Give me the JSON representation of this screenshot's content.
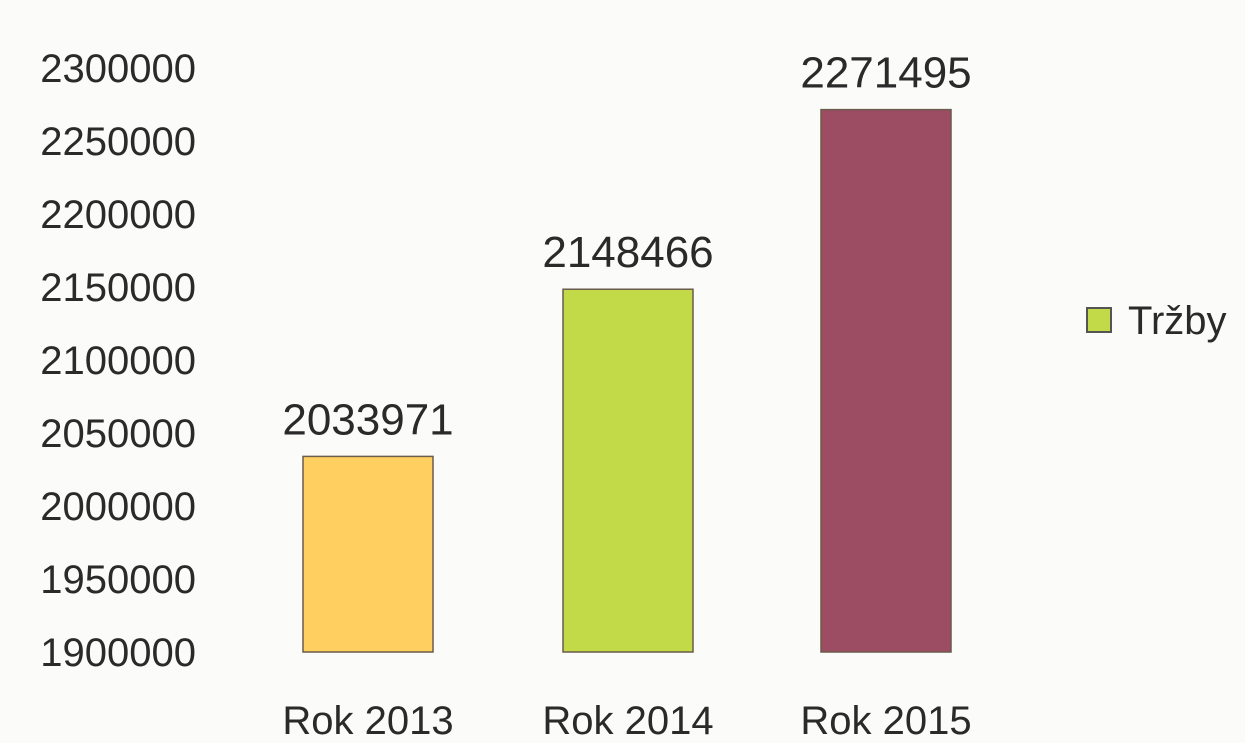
{
  "chart_data": {
    "type": "bar",
    "categories": [
      "Rok 2013",
      "Rok 2014",
      "Rok 2015"
    ],
    "series": [
      {
        "name": "Tržby",
        "values": [
          2033971,
          2148466,
          2271495
        ]
      }
    ],
    "data_labels": [
      "2033971",
      "2148466",
      "2271495"
    ],
    "y_ticks": [
      "1900000",
      "1950000",
      "2000000",
      "2050000",
      "2100000",
      "2150000",
      "2200000",
      "2250000",
      "2300000"
    ],
    "ylim": [
      1900000,
      2300000
    ],
    "bar_colors": [
      "#ffd060",
      "#c2da48",
      "#9c4d63"
    ],
    "legend_color": "#c2da48",
    "legend_position": "right",
    "grid": false,
    "title": "",
    "xlabel": "",
    "ylabel": ""
  }
}
